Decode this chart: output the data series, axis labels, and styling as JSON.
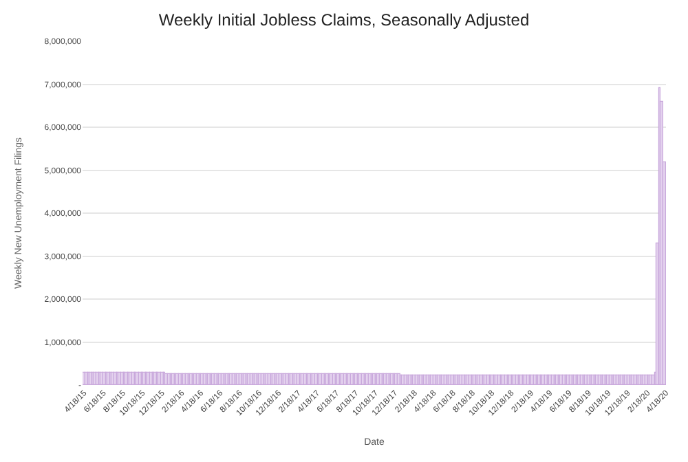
{
  "chart_data": {
    "type": "bar",
    "title": "Weekly Initial Jobless Claims, Seasonally Adjusted",
    "xlabel": "Date",
    "ylabel": "Weekly New Unemployment Filings",
    "x": [
      "2015-04-18",
      "2015-04-25",
      "2015-05-02",
      "2015-05-09",
      "2015-05-16",
      "2015-05-23",
      "2015-05-30",
      "2015-06-06",
      "2015-06-13",
      "2015-06-20",
      "2015-06-27",
      "2015-07-04",
      "2015-07-11",
      "2015-07-18",
      "2015-07-25",
      "2015-08-01",
      "2015-08-08",
      "2015-08-15",
      "2015-08-22",
      "2015-08-29",
      "2015-09-05",
      "2015-09-12",
      "2015-09-19",
      "2015-09-26",
      "2015-10-03",
      "2015-10-10",
      "2015-10-17",
      "2015-10-24",
      "2015-10-31",
      "2015-11-07",
      "2015-11-14",
      "2015-11-21",
      "2015-11-28",
      "2015-12-05",
      "2015-12-12",
      "2015-12-19",
      "2015-12-26",
      "2016-01-02",
      "2016-01-09",
      "2016-01-16",
      "2016-01-23",
      "2016-01-30",
      "2016-02-06",
      "2016-02-13",
      "2016-02-20",
      "2016-02-27",
      "2016-03-05",
      "2016-03-12",
      "2016-03-19",
      "2016-03-26",
      "2016-04-02",
      "2016-04-09",
      "2016-04-16",
      "2016-04-23",
      "2016-04-30",
      "2016-05-07",
      "2016-05-14",
      "2016-05-21",
      "2016-05-28",
      "2016-06-04",
      "2016-06-11",
      "2016-06-18",
      "2016-06-25",
      "2016-07-02",
      "2016-07-09",
      "2016-07-16",
      "2016-07-23",
      "2016-07-30",
      "2016-08-06",
      "2016-08-13",
      "2016-08-20",
      "2016-08-27",
      "2016-09-03",
      "2016-09-10",
      "2016-09-17",
      "2016-09-24",
      "2016-10-01",
      "2016-10-08",
      "2016-10-15",
      "2016-10-22",
      "2016-10-29",
      "2016-11-05",
      "2016-11-12",
      "2016-11-19",
      "2016-11-26",
      "2016-12-03",
      "2016-12-10",
      "2016-12-17",
      "2016-12-24",
      "2016-12-31",
      "2017-01-07",
      "2017-01-14",
      "2017-01-21",
      "2017-01-28",
      "2017-02-04",
      "2017-02-11",
      "2017-02-18",
      "2017-02-25",
      "2017-03-04",
      "2017-03-11",
      "2017-03-18",
      "2017-03-25",
      "2017-04-01",
      "2017-04-08",
      "2017-04-15",
      "2017-04-22",
      "2017-04-29",
      "2017-05-06",
      "2017-05-13",
      "2017-05-20",
      "2017-05-27",
      "2017-06-03",
      "2017-06-10",
      "2017-06-17",
      "2017-06-24",
      "2017-07-01",
      "2017-07-08",
      "2017-07-15",
      "2017-07-22",
      "2017-07-29",
      "2017-08-05",
      "2017-08-12",
      "2017-08-19",
      "2017-08-26",
      "2017-09-02",
      "2017-09-09",
      "2017-09-16",
      "2017-09-23",
      "2017-09-30",
      "2017-10-07",
      "2017-10-14",
      "2017-10-21",
      "2017-10-28",
      "2017-11-04",
      "2017-11-11",
      "2017-11-18",
      "2017-11-25",
      "2017-12-02",
      "2017-12-09",
      "2017-12-16",
      "2017-12-23",
      "2017-12-30",
      "2018-01-06",
      "2018-01-13",
      "2018-01-20",
      "2018-01-27",
      "2018-02-03",
      "2018-02-10",
      "2018-02-17",
      "2018-02-24",
      "2018-03-03",
      "2018-03-10",
      "2018-03-17",
      "2018-03-24",
      "2018-03-31",
      "2018-04-07",
      "2018-04-14",
      "2018-04-21",
      "2018-04-28",
      "2018-05-05",
      "2018-05-12",
      "2018-05-19",
      "2018-05-26",
      "2018-06-02",
      "2018-06-09",
      "2018-06-16",
      "2018-06-23",
      "2018-06-30",
      "2018-07-07",
      "2018-07-14",
      "2018-07-21",
      "2018-07-28",
      "2018-08-04",
      "2018-08-11",
      "2018-08-18",
      "2018-08-25",
      "2018-09-01",
      "2018-09-08",
      "2018-09-15",
      "2018-09-22",
      "2018-09-29",
      "2018-10-06",
      "2018-10-13",
      "2018-10-20",
      "2018-10-27",
      "2018-11-03",
      "2018-11-10",
      "2018-11-17",
      "2018-11-24",
      "2018-12-01",
      "2018-12-08",
      "2018-12-15",
      "2018-12-22",
      "2018-12-29",
      "2019-01-05",
      "2019-01-12",
      "2019-01-19",
      "2019-01-26",
      "2019-02-02",
      "2019-02-09",
      "2019-02-16",
      "2019-02-23",
      "2019-03-02",
      "2019-03-09",
      "2019-03-16",
      "2019-03-23",
      "2019-03-30",
      "2019-04-06",
      "2019-04-13",
      "2019-04-20",
      "2019-04-27",
      "2019-05-04",
      "2019-05-11",
      "2019-05-18",
      "2019-05-25",
      "2019-06-01",
      "2019-06-08",
      "2019-06-15",
      "2019-06-22",
      "2019-06-29",
      "2019-07-06",
      "2019-07-13",
      "2019-07-20",
      "2019-07-27",
      "2019-08-03",
      "2019-08-10",
      "2019-08-17",
      "2019-08-24",
      "2019-08-31",
      "2019-09-07",
      "2019-09-14",
      "2019-09-21",
      "2019-09-28",
      "2019-10-05",
      "2019-10-12",
      "2019-10-19",
      "2019-10-26",
      "2019-11-02",
      "2019-11-09",
      "2019-11-16",
      "2019-11-23",
      "2019-11-30",
      "2019-12-07",
      "2019-12-14",
      "2019-12-21",
      "2019-12-28",
      "2020-01-04",
      "2020-01-11",
      "2020-01-18",
      "2020-01-25",
      "2020-02-01",
      "2020-02-08",
      "2020-02-15",
      "2020-02-22",
      "2020-02-29",
      "2020-03-07",
      "2020-03-14",
      "2020-03-21",
      "2020-03-28",
      "2020-04-04",
      "2020-04-11"
    ],
    "values": [
      280000,
      280000,
      280000,
      280000,
      280000,
      280000,
      280000,
      280000,
      280000,
      280000,
      280000,
      280000,
      280000,
      280000,
      280000,
      280000,
      280000,
      280000,
      280000,
      280000,
      280000,
      280000,
      280000,
      280000,
      280000,
      280000,
      280000,
      280000,
      280000,
      280000,
      280000,
      280000,
      280000,
      280000,
      280000,
      280000,
      280000,
      260000,
      260000,
      260000,
      260000,
      260000,
      260000,
      260000,
      260000,
      260000,
      260000,
      260000,
      260000,
      260000,
      260000,
      260000,
      260000,
      260000,
      260000,
      260000,
      260000,
      260000,
      260000,
      260000,
      260000,
      260000,
      260000,
      260000,
      260000,
      260000,
      260000,
      260000,
      260000,
      260000,
      260000,
      260000,
      260000,
      260000,
      260000,
      260000,
      260000,
      260000,
      260000,
      260000,
      260000,
      260000,
      260000,
      260000,
      260000,
      260000,
      260000,
      260000,
      260000,
      260000,
      250000,
      250000,
      250000,
      250000,
      250000,
      250000,
      250000,
      250000,
      250000,
      250000,
      250000,
      250000,
      250000,
      250000,
      250000,
      250000,
      250000,
      250000,
      250000,
      250000,
      250000,
      250000,
      250000,
      250000,
      250000,
      250000,
      250000,
      250000,
      250000,
      250000,
      250000,
      250000,
      250000,
      250000,
      250000,
      250000,
      250000,
      250000,
      250000,
      250000,
      250000,
      250000,
      250000,
      250000,
      250000,
      250000,
      250000,
      250000,
      250000,
      250000,
      250000,
      250000,
      220000,
      220000,
      220000,
      220000,
      220000,
      220000,
      220000,
      220000,
      220000,
      220000,
      220000,
      220000,
      220000,
      220000,
      220000,
      220000,
      220000,
      220000,
      220000,
      220000,
      220000,
      220000,
      220000,
      220000,
      220000,
      220000,
      220000,
      220000,
      220000,
      220000,
      220000,
      220000,
      220000,
      220000,
      220000,
      220000,
      220000,
      220000,
      220000,
      220000,
      220000,
      220000,
      220000,
      220000,
      220000,
      220000,
      220000,
      220000,
      220000,
      220000,
      220000,
      220000,
      220000,
      220000,
      220000,
      220000,
      220000,
      220000,
      220000,
      220000,
      220000,
      220000,
      220000,
      220000,
      220000,
      220000,
      220000,
      220000,
      220000,
      220000,
      220000,
      220000,
      220000,
      220000,
      220000,
      220000,
      220000,
      220000,
      220000,
      220000,
      220000,
      220000,
      220000,
      220000,
      220000,
      220000,
      220000,
      220000,
      220000,
      220000,
      220000,
      220000,
      220000,
      220000,
      220000,
      220000,
      220000,
      220000,
      220000,
      220000,
      220000,
      220000,
      220000,
      220000,
      220000,
      220000,
      220000,
      220000,
      220000,
      220000,
      220000,
      220000,
      220000,
      220000,
      280000,
      3300000,
      6900000,
      6600000,
      5200000
    ],
    "color": "#e4d2ee",
    "xlim": [
      "2015-04-13",
      "2020-04-16"
    ],
    "xticks": [
      {
        "value": "2015-04-18",
        "label": "4/18/15"
      },
      {
        "value": "2015-06-18",
        "label": "6/18/15"
      },
      {
        "value": "2015-08-18",
        "label": "8/18/15"
      },
      {
        "value": "2015-10-18",
        "label": "10/18/15"
      },
      {
        "value": "2015-12-18",
        "label": "12/18/15"
      },
      {
        "value": "2016-02-18",
        "label": "2/18/16"
      },
      {
        "value": "2016-04-18",
        "label": "4/18/16"
      },
      {
        "value": "2016-06-18",
        "label": "6/18/16"
      },
      {
        "value": "2016-08-18",
        "label": "8/18/16"
      },
      {
        "value": "2016-10-18",
        "label": "10/18/16"
      },
      {
        "value": "2016-12-18",
        "label": "12/18/16"
      },
      {
        "value": "2017-02-18",
        "label": "2/18/17"
      },
      {
        "value": "2017-04-18",
        "label": "4/18/17"
      },
      {
        "value": "2017-06-18",
        "label": "6/18/17"
      },
      {
        "value": "2017-08-18",
        "label": "8/18/17"
      },
      {
        "value": "2017-10-18",
        "label": "10/18/17"
      },
      {
        "value": "2017-12-18",
        "label": "12/18/17"
      },
      {
        "value": "2018-02-18",
        "label": "2/18/18"
      },
      {
        "value": "2018-04-18",
        "label": "4/18/18"
      },
      {
        "value": "2018-06-18",
        "label": "6/18/18"
      },
      {
        "value": "2018-08-18",
        "label": "8/18/18"
      },
      {
        "value": "2018-10-18",
        "label": "10/18/18"
      },
      {
        "value": "2018-12-18",
        "label": "12/18/18"
      },
      {
        "value": "2019-02-18",
        "label": "2/18/19"
      },
      {
        "value": "2019-04-18",
        "label": "4/18/19"
      },
      {
        "value": "2019-06-18",
        "label": "6/18/19"
      },
      {
        "value": "2019-08-18",
        "label": "8/18/19"
      },
      {
        "value": "2019-10-18",
        "label": "10/18/19"
      },
      {
        "value": "2019-12-18",
        "label": "12/18/19"
      },
      {
        "value": "2020-02-18",
        "label": "2/18/20"
      },
      {
        "value": "2020-04-16",
        "label": "4/18/20"
      }
    ],
    "ylim": [
      0,
      8000000
    ],
    "yticks": [
      {
        "value": 0,
        "label": "-"
      },
      {
        "value": 1000000,
        "label": "1,000,000"
      },
      {
        "value": 2000000,
        "label": "2,000,000"
      },
      {
        "value": 3000000,
        "label": "3,000,000"
      },
      {
        "value": 4000000,
        "label": "4,000,000"
      },
      {
        "value": 5000000,
        "label": "5,000,000"
      },
      {
        "value": 6000000,
        "label": "6,000,000"
      },
      {
        "value": 7000000,
        "label": "7,000,000"
      },
      {
        "value": 8000000,
        "label": "8,000,000"
      }
    ],
    "grid": "y"
  }
}
